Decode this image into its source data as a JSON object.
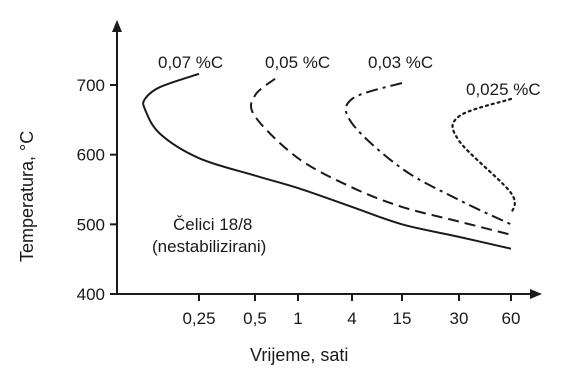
{
  "chart_data": {
    "type": "line",
    "xlabel": "Vrijeme, sati",
    "ylabel": "Temperatura, °C",
    "x_ticks": [
      "0,25",
      "0,5",
      "1",
      "4",
      "15",
      "30",
      "60"
    ],
    "y_ticks": [
      "400",
      "500",
      "600",
      "700"
    ],
    "ylim": [
      400,
      700
    ],
    "annotation": [
      "Čelici 18/8",
      "(nestabilizirani)"
    ],
    "series": [
      {
        "name": "0,07 %C",
        "style": "solid",
        "points": [
          {
            "x": "0,25",
            "y": 716
          },
          {
            "x": "0,1",
            "y": 697
          },
          {
            "x": "0,07",
            "y": 680
          },
          {
            "x": "0,07",
            "y": 665
          },
          {
            "x": "0,1",
            "y": 630
          },
          {
            "x": "0,25",
            "y": 595
          },
          {
            "x": "0,5",
            "y": 570
          },
          {
            "x": "1",
            "y": 552
          },
          {
            "x": "4",
            "y": 525
          },
          {
            "x": "15",
            "y": 500
          },
          {
            "x": "30",
            "y": 482
          },
          {
            "x": "60",
            "y": 465
          }
        ]
      },
      {
        "name": "0,05 %C",
        "style": "dashed",
        "points": [
          {
            "x": "0,75",
            "y": 709
          },
          {
            "x": "0,5",
            "y": 685
          },
          {
            "x": "0,5",
            "y": 655
          },
          {
            "x": "1",
            "y": 595
          },
          {
            "x": "4",
            "y": 553
          },
          {
            "x": "15",
            "y": 525
          },
          {
            "x": "30",
            "y": 504
          },
          {
            "x": "60",
            "y": 485
          }
        ]
      },
      {
        "name": "0,03 %C",
        "style": "dashdot",
        "points": [
          {
            "x": "15",
            "y": 703
          },
          {
            "x": "4",
            "y": 680
          },
          {
            "x": "4",
            "y": 645
          },
          {
            "x": "15",
            "y": 580
          },
          {
            "x": "30",
            "y": 535
          },
          {
            "x": "60",
            "y": 500
          }
        ]
      },
      {
        "name": "0,025 %C",
        "style": "dotted",
        "points": [
          {
            "x": "60",
            "y": 680
          },
          {
            "x": "30",
            "y": 655
          },
          {
            "x": "30",
            "y": 620
          },
          {
            "x": "60",
            "y": 545
          },
          {
            "x": "60",
            "y": 515
          }
        ]
      }
    ]
  }
}
